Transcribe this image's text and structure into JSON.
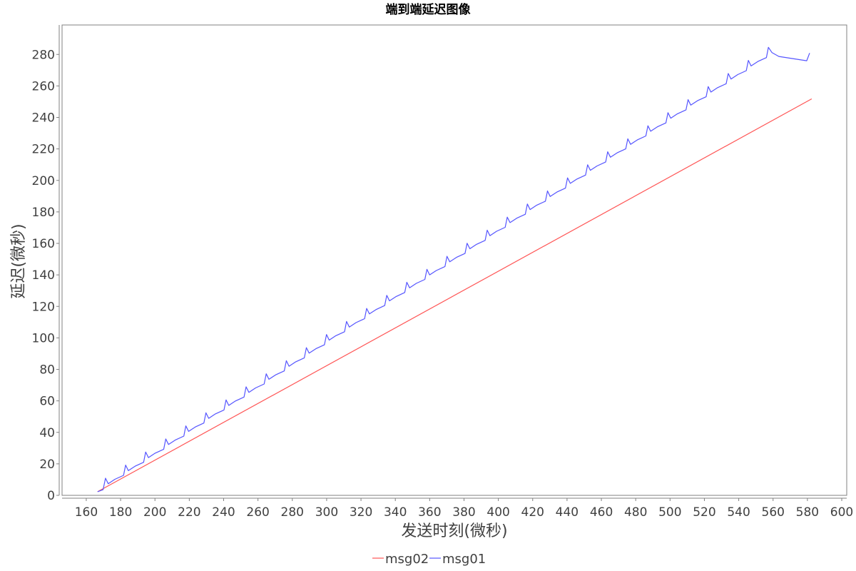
{
  "chart_data": {
    "type": "line",
    "title": "端到端延迟图像",
    "xlabel": "发送时刻(微秒)",
    "ylabel": "延迟(微秒)",
    "xlim": [
      145.9,
      602.9
    ],
    "ylim": [
      0,
      298.7
    ],
    "x_ticks": [
      160,
      180,
      200,
      220,
      240,
      260,
      280,
      300,
      320,
      340,
      360,
      380,
      400,
      420,
      440,
      460,
      480,
      500,
      520,
      540,
      560,
      580,
      600
    ],
    "y_ticks": [
      0,
      20,
      40,
      60,
      80,
      100,
      120,
      140,
      160,
      180,
      200,
      220,
      240,
      260,
      280
    ],
    "grid": false,
    "legend_position": "bottom",
    "series": [
      {
        "name": "msg02",
        "color": "#ff5555",
        "x": [
          166.6,
          582.5
        ],
        "y": [
          2.3,
          251.8
        ]
      },
      {
        "name": "msg01",
        "color": "#5555ff",
        "x": [
          166.6,
          169.8,
          171.2,
          172.8,
          176.7,
          181.7,
          182.9,
          184.5,
          188.4,
          193.4,
          194.6,
          196.2,
          200.1,
          205.1,
          206.3,
          207.9,
          211.8,
          216.8,
          218.0,
          219.6,
          223.5,
          228.5,
          229.7,
          231.3,
          235.2,
          240.2,
          241.4,
          243.0,
          246.9,
          251.9,
          253.1,
          254.7,
          258.6,
          263.6,
          264.8,
          266.4,
          270.3,
          275.3,
          276.5,
          278.1,
          282.0,
          287.0,
          288.2,
          289.8,
          293.7,
          298.7,
          299.9,
          301.5,
          305.4,
          310.4,
          311.6,
          313.2,
          317.1,
          322.1,
          323.3,
          324.9,
          328.8,
          333.8,
          335.0,
          336.6,
          340.5,
          345.5,
          346.7,
          348.3,
          352.2,
          357.2,
          358.4,
          360.0,
          363.9,
          368.9,
          370.1,
          371.7,
          375.6,
          380.6,
          381.8,
          383.4,
          387.3,
          392.3,
          393.5,
          395.1,
          399.0,
          404.0,
          405.2,
          406.8,
          410.7,
          415.7,
          416.9,
          418.5,
          422.4,
          427.4,
          428.6,
          430.2,
          434.1,
          439.1,
          440.3,
          441.9,
          445.8,
          450.8,
          452.0,
          453.6,
          457.5,
          462.5,
          463.7,
          465.3,
          469.2,
          474.2,
          475.4,
          477.0,
          480.9,
          485.9,
          487.1,
          488.7,
          492.6,
          497.6,
          498.8,
          500.4,
          504.3,
          509.3,
          510.5,
          512.1,
          516.0,
          521.0,
          522.2,
          523.8,
          527.7,
          532.7,
          533.9,
          535.5,
          539.4,
          544.4,
          545.6,
          547.2,
          551.1,
          556.1,
          557.3,
          559.3,
          563.4,
          579.6,
          581.3
        ],
        "y": [
          2.3,
          3.6,
          10.9,
          7.4,
          10.2,
          12.7,
          19.2,
          15.7,
          18.5,
          21.0,
          27.5,
          24.0,
          26.8,
          29.3,
          35.8,
          32.3,
          35.1,
          37.6,
          44.1,
          40.6,
          43.4,
          45.9,
          52.4,
          48.9,
          51.7,
          54.2,
          60.6,
          57.1,
          59.9,
          62.4,
          68.9,
          65.4,
          68.2,
          70.7,
          77.2,
          73.7,
          76.5,
          79.0,
          85.5,
          82.0,
          84.8,
          87.3,
          93.8,
          90.3,
          93.1,
          95.6,
          102.1,
          98.6,
          101.4,
          103.9,
          110.4,
          106.9,
          109.7,
          112.2,
          118.7,
          115.2,
          118.0,
          120.5,
          127.0,
          123.5,
          126.3,
          128.8,
          135.3,
          131.8,
          134.6,
          137.1,
          143.5,
          140.0,
          142.8,
          145.3,
          151.8,
          148.3,
          151.1,
          153.6,
          160.1,
          156.6,
          159.4,
          161.9,
          168.4,
          164.9,
          167.7,
          170.2,
          176.7,
          173.2,
          176.0,
          178.5,
          185.0,
          181.5,
          184.3,
          186.8,
          193.3,
          189.8,
          192.6,
          195.1,
          201.6,
          198.1,
          200.9,
          203.4,
          209.9,
          206.4,
          209.2,
          211.7,
          218.2,
          214.7,
          217.5,
          220.0,
          226.4,
          222.9,
          225.7,
          228.2,
          234.7,
          231.2,
          234.0,
          236.5,
          243.0,
          239.5,
          242.3,
          244.8,
          251.3,
          247.8,
          250.6,
          253.1,
          259.6,
          256.1,
          258.9,
          261.4,
          267.9,
          264.4,
          267.2,
          269.7,
          276.2,
          272.7,
          275.5,
          278.0,
          284.5,
          281.2,
          278.7,
          276.0,
          280.9
        ]
      }
    ]
  }
}
